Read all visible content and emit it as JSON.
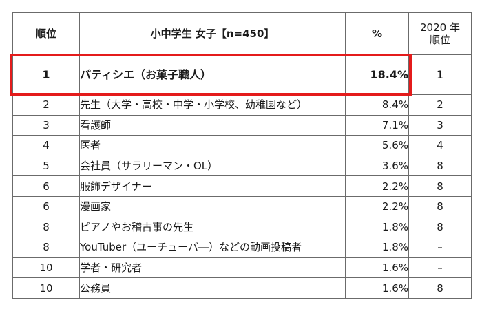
{
  "table": {
    "headers": {
      "rank": "順位",
      "job": "小中学生 女子【n=450】",
      "pct": "%",
      "prev_line1": "2020 年",
      "prev_line2": "順位"
    },
    "rows": [
      {
        "rank": "1",
        "job": "パティシエ（お菓子職人）",
        "pct": "18.4%",
        "prev": "1"
      },
      {
        "rank": "2",
        "job": "先生（大学・高校・中学・小学校、幼稚園など）",
        "pct": "8.4%",
        "prev": "2"
      },
      {
        "rank": "3",
        "job": "看護師",
        "pct": "7.1%",
        "prev": "3"
      },
      {
        "rank": "4",
        "job": "医者",
        "pct": "5.6%",
        "prev": "4"
      },
      {
        "rank": "5",
        "job": "会社員（サラリーマン・OL）",
        "pct": "3.6%",
        "prev": "8"
      },
      {
        "rank": "6",
        "job": "服飾デザイナー",
        "pct": "2.2%",
        "prev": "8"
      },
      {
        "rank": "6",
        "job": "漫画家",
        "pct": "2.2%",
        "prev": "8"
      },
      {
        "rank": "8",
        "job": "ピアノやお稽古事の先生",
        "pct": "1.8%",
        "prev": "8"
      },
      {
        "rank": "8",
        "job": "YouTuber（ユーチューバ―）などの動画投稿者",
        "pct": "1.8%",
        "prev": "–"
      },
      {
        "rank": "10",
        "job": "学者・研究者",
        "pct": "1.6%",
        "prev": "–"
      },
      {
        "rank": "10",
        "job": "公務員",
        "pct": "1.6%",
        "prev": "8"
      }
    ]
  },
  "colors": {
    "highlight": "#e41b1b",
    "border": "#6b6b6b"
  }
}
